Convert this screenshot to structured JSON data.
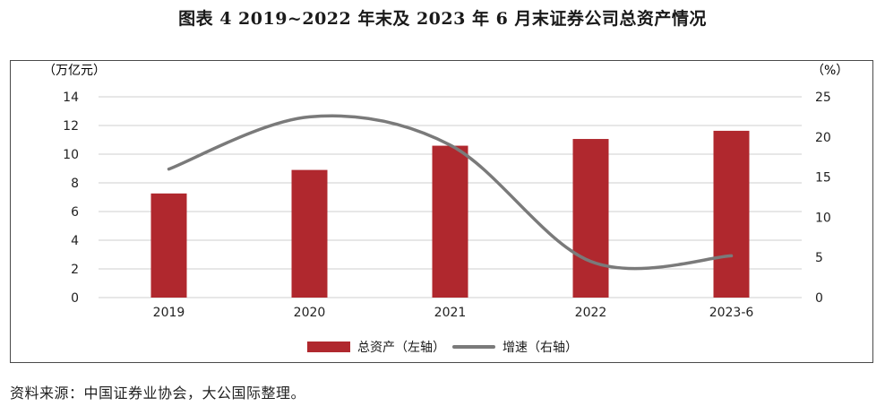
{
  "title": "图表 4 2019~2022 年末及 2023 年 6 月末证券公司总资产情况",
  "source": "资料来源：中国证券业协会，大公国际整理。",
  "chart_data": {
    "type": "bar",
    "categories": [
      "2019",
      "2020",
      "2021",
      "2022",
      "2023-6"
    ],
    "series": [
      {
        "name": "总资产（左轴）",
        "type": "bar",
        "axis": "left",
        "color": "#b0282e",
        "values": [
          7.26,
          8.9,
          10.59,
          11.06,
          11.63
        ]
      },
      {
        "name": "增速（右轴）",
        "type": "line",
        "axis": "right",
        "color": "#7a7a7a",
        "values": [
          16.0,
          22.5,
          19.0,
          4.5,
          5.2
        ]
      }
    ],
    "left_axis": {
      "unit": "（万亿元）",
      "min": 0,
      "max": 14,
      "ticks": [
        "0",
        "2",
        "4",
        "6",
        "8",
        "10",
        "12",
        "14"
      ]
    },
    "right_axis": {
      "unit": "（%）",
      "min": 0,
      "max": 25,
      "ticks": [
        "0",
        "5",
        "10",
        "15",
        "20",
        "25"
      ]
    },
    "grid": true,
    "legend_position": "bottom"
  }
}
